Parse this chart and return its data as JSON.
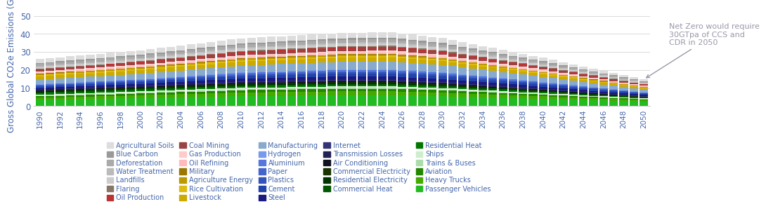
{
  "years": [
    1990,
    1991,
    1992,
    1993,
    1994,
    1995,
    1996,
    1997,
    1998,
    1999,
    2000,
    2001,
    2002,
    2003,
    2004,
    2005,
    2006,
    2007,
    2008,
    2009,
    2010,
    2011,
    2012,
    2013,
    2014,
    2015,
    2016,
    2017,
    2018,
    2019,
    2020,
    2021,
    2022,
    2023,
    2024,
    2025,
    2026,
    2027,
    2028,
    2029,
    2030,
    2031,
    2032,
    2033,
    2034,
    2035,
    2036,
    2037,
    2038,
    2039,
    2040,
    2041,
    2042,
    2043,
    2044,
    2045,
    2046,
    2047,
    2048,
    2049,
    2050
  ],
  "sources": [
    {
      "name": "Passenger Vehicles",
      "color": "#22bb22"
    },
    {
      "name": "Heavy Trucks",
      "color": "#44aa00"
    },
    {
      "name": "Aviation",
      "color": "#228800"
    },
    {
      "name": "Trains & Buses",
      "color": "#aaddaa"
    },
    {
      "name": "Ships",
      "color": "#cceecc"
    },
    {
      "name": "Residential Heat",
      "color": "#007700"
    },
    {
      "name": "Commercial Heat",
      "color": "#005500"
    },
    {
      "name": "Residential Electricity",
      "color": "#003300"
    },
    {
      "name": "Commercial Electricity",
      "#color": "#001a00",
      "color": "#1a3300"
    },
    {
      "name": "Air Conditioning",
      "color": "#111122"
    },
    {
      "name": "Transmission Losses",
      "color": "#222255"
    },
    {
      "name": "Internet",
      "color": "#333377"
    },
    {
      "name": "Steel",
      "color": "#1a1a80"
    },
    {
      "name": "Cement",
      "color": "#2244aa"
    },
    {
      "name": "Plastics",
      "color": "#3355bb"
    },
    {
      "name": "Paper",
      "color": "#4466cc"
    },
    {
      "name": "Aluminium",
      "color": "#5577dd"
    },
    {
      "name": "Hydrogen",
      "color": "#7799ee"
    },
    {
      "name": "Manufacturing",
      "color": "#88aacc"
    },
    {
      "name": "Livestock",
      "color": "#ccaa00"
    },
    {
      "name": "Rice Cultivation",
      "color": "#ddbb11"
    },
    {
      "name": "Agriculture Energy",
      "color": "#bb9900"
    },
    {
      "name": "Military",
      "color": "#997700"
    },
    {
      "name": "Oil Refining",
      "color": "#ffbbbb"
    },
    {
      "name": "Gas Production",
      "color": "#ffcccc"
    },
    {
      "name": "Coal Mining",
      "color": "#994444"
    },
    {
      "name": "Oil Production",
      "color": "#bb3333"
    },
    {
      "name": "Flaring",
      "color": "#887766"
    },
    {
      "name": "Landfills",
      "color": "#cccccc"
    },
    {
      "name": "Water Treatment",
      "color": "#bbbbbb"
    },
    {
      "name": "Deforestation",
      "color": "#aaaaaa"
    },
    {
      "name": "Blue Carbon",
      "color": "#999999"
    },
    {
      "name": "Agricultural Soils",
      "color": "#dddddd"
    }
  ],
  "ylabel": "Gross Global CO2e Emissions (GTpa)",
  "annotation": "Net Zero would require\n30GTpa of CCS and\nCDR in 2050",
  "annotation_color": "#9999aa",
  "label_color": "#4466aa",
  "ylim": [
    0,
    55
  ],
  "yticks": [
    0,
    10,
    20,
    30,
    40,
    50
  ]
}
